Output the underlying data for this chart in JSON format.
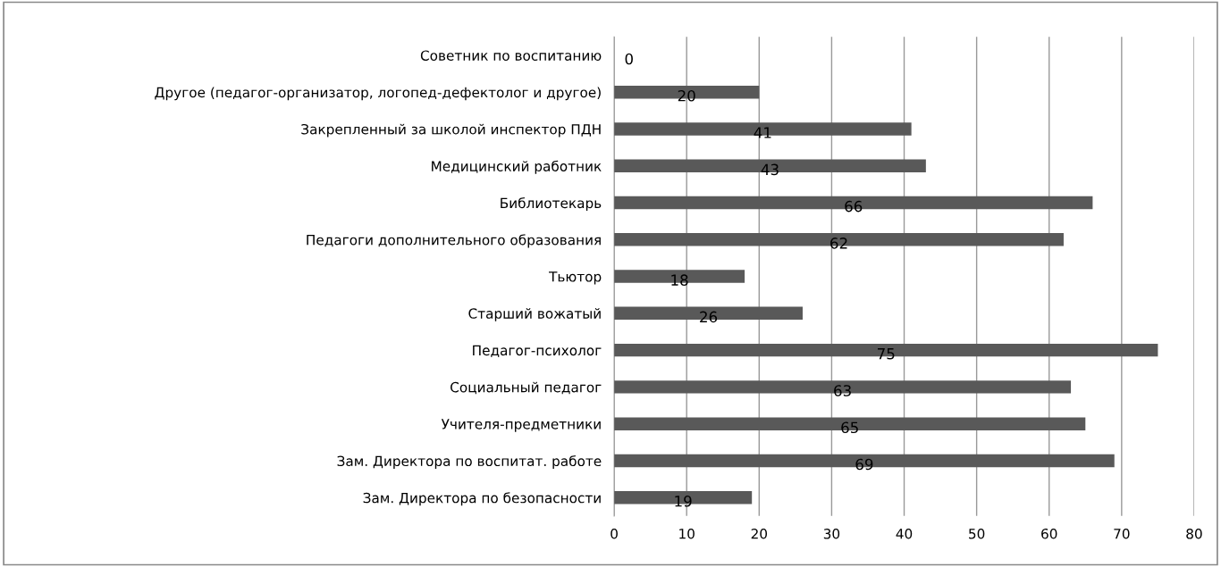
{
  "chart_data": {
    "type": "bar",
    "orientation": "horizontal",
    "categories": [
      "Советник по воспитанию",
      "Другое (педагог-организатор, логопед-дефектолог и другое)",
      "Закрепленный за школой инспектор ПДН",
      "Медицинский работник",
      "Библиотекарь",
      "Педагоги дополнительного образования",
      "Тьютор",
      "Старший вожатый",
      "Педагог-психолог",
      "Социальный педагог",
      "Учителя-предметники",
      "Зам. Директора по воспитат. работе",
      "Зам. Директора по безопасности"
    ],
    "values": [
      0,
      20,
      41,
      43,
      66,
      62,
      18,
      26,
      75,
      63,
      65,
      69,
      19
    ],
    "color": "#595959",
    "xlim": [
      0,
      80
    ],
    "xticks": [
      0,
      10,
      20,
      30,
      40,
      50,
      60,
      70,
      80
    ],
    "grid": "x",
    "data_labels": true,
    "legend": false
  }
}
